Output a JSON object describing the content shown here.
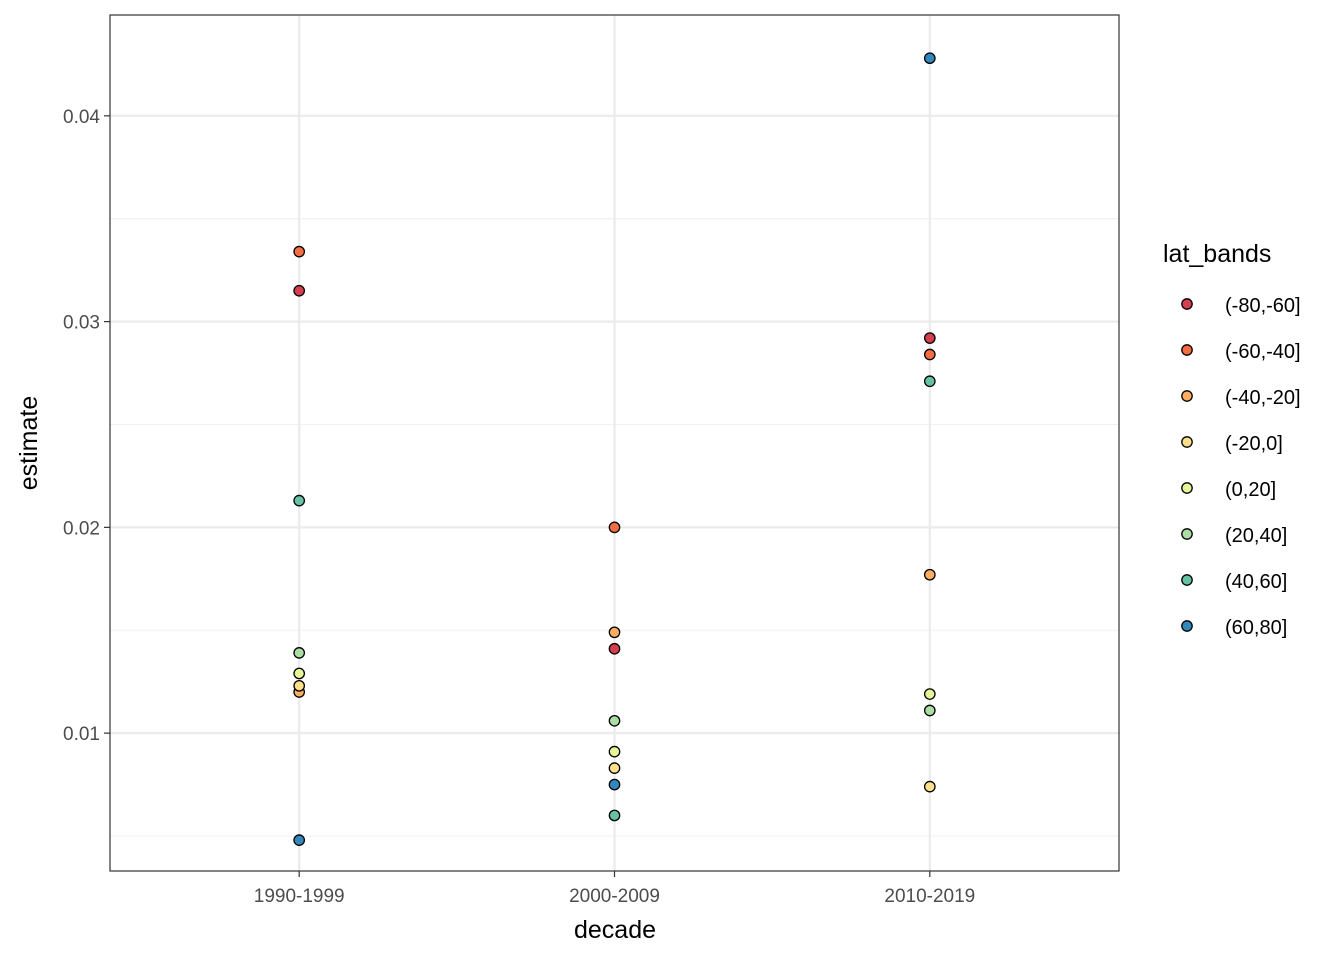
{
  "chart_data": {
    "type": "scatter",
    "title": "",
    "xlabel": "decade",
    "ylabel": "estimate",
    "categories": [
      "1990-1999",
      "2000-2009",
      "2010-2019"
    ],
    "ylim": [
      0.0033,
      0.0449
    ],
    "y_ticks": [
      0.01,
      0.02,
      0.03,
      0.04
    ],
    "y_tick_labels": [
      "0.01",
      "0.02",
      "0.03",
      "0.04"
    ],
    "grid": true,
    "legend": {
      "title": "lat_bands",
      "position": "right"
    },
    "series": [
      {
        "name": "(-80,-60]",
        "color": "#d53e4f",
        "values": [
          0.0315,
          0.0141,
          0.0292
        ]
      },
      {
        "name": "(-60,-40]",
        "color": "#f46d43",
        "values": [
          0.0334,
          0.02,
          0.0284
        ]
      },
      {
        "name": "(-40,-20]",
        "color": "#fdae61",
        "values": [
          0.012,
          0.0149,
          0.0177
        ]
      },
      {
        "name": "(-20,0]",
        "color": "#fee08b",
        "values": [
          0.0123,
          0.0083,
          0.0074
        ]
      },
      {
        "name": "(0,20]",
        "color": "#e6f598",
        "values": [
          0.0129,
          0.0091,
          0.0119
        ]
      },
      {
        "name": "(20,40]",
        "color": "#abdda4",
        "values": [
          0.0139,
          0.0106,
          0.0111
        ]
      },
      {
        "name": "(40,60]",
        "color": "#66c2a5",
        "values": [
          0.0213,
          0.006,
          0.0271
        ]
      },
      {
        "name": "(60,80]",
        "color": "#3288bd",
        "values": [
          0.0048,
          0.0075,
          0.0428
        ]
      }
    ]
  }
}
